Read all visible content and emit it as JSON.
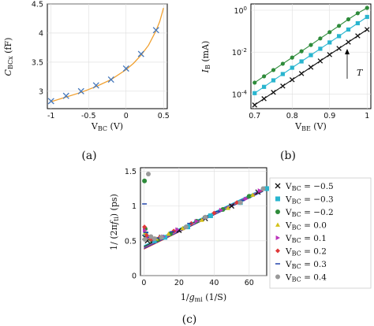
{
  "chart_data": [
    {
      "panel": "(a)",
      "type": "line",
      "xlabel": "V_BC (V)",
      "ylabel": "C_BCx (fF)",
      "xlim": [
        -1.05,
        0.55
      ],
      "ylim": [
        2.7,
        4.5
      ],
      "xticks": [
        -1,
        -0.5,
        0,
        0.5
      ],
      "yticks": [
        3,
        3.5,
        4,
        4.5
      ],
      "grid": true,
      "series": [
        {
          "kind": "fit-line",
          "color": "#f0a030",
          "x": [
            -1.0,
            -0.8,
            -0.6,
            -0.4,
            -0.2,
            0.0,
            0.1,
            0.2,
            0.3,
            0.4,
            0.45,
            0.5
          ],
          "y": [
            2.82,
            2.9,
            2.98,
            3.08,
            3.2,
            3.37,
            3.48,
            3.62,
            3.79,
            4.04,
            4.2,
            4.43
          ]
        },
        {
          "kind": "markers",
          "marker": "x",
          "color": "#4477bb",
          "x": [
            -1.0,
            -0.8,
            -0.6,
            -0.4,
            -0.2,
            0.0,
            0.2,
            0.4
          ],
          "y": [
            2.83,
            2.92,
            3.0,
            3.1,
            3.2,
            3.39,
            3.64,
            4.05
          ]
        }
      ]
    },
    {
      "panel": "(b)",
      "type": "line",
      "xlabel": "V_BE (V)",
      "ylabel": "I_B (mA)",
      "yscale": "log",
      "xlim": [
        0.69,
        1.01
      ],
      "ylim": [
        2e-05,
        2
      ],
      "xticks": [
        0.7,
        0.8,
        0.9,
        1
      ],
      "yticks": [
        0.0001,
        0.01,
        1
      ],
      "ytick_labels": [
        "10^-4",
        "10^-2",
        "10^0"
      ],
      "annotation": "T",
      "grid": true,
      "series": [
        {
          "marker": "circle",
          "color": "#2e8b3a",
          "x": [
            0.7,
            0.725,
            0.75,
            0.775,
            0.8,
            0.825,
            0.85,
            0.875,
            0.9,
            0.925,
            0.95,
            0.975,
            1.0
          ],
          "y": [
            0.00035,
            0.0007,
            0.0014,
            0.0028,
            0.0055,
            0.011,
            0.022,
            0.045,
            0.09,
            0.18,
            0.37,
            0.72,
            1.3
          ]
        },
        {
          "marker": "square",
          "color": "#29b5cf",
          "x": [
            0.7,
            0.725,
            0.75,
            0.775,
            0.8,
            0.825,
            0.85,
            0.875,
            0.9,
            0.925,
            0.95,
            0.975,
            1.0
          ],
          "y": [
            0.00011,
            0.00022,
            0.00045,
            0.0009,
            0.0018,
            0.0036,
            0.0072,
            0.0145,
            0.029,
            0.058,
            0.12,
            0.24,
            0.48
          ]
        },
        {
          "marker": "x",
          "color": "#111111",
          "x": [
            0.7,
            0.725,
            0.75,
            0.775,
            0.8,
            0.825,
            0.85,
            0.875,
            0.9,
            0.925,
            0.95,
            0.975,
            1.0
          ],
          "y": [
            3e-05,
            6e-05,
            0.00012,
            0.00024,
            0.00048,
            0.00095,
            0.0019,
            0.0038,
            0.0076,
            0.015,
            0.03,
            0.06,
            0.12
          ]
        }
      ]
    },
    {
      "panel": "(c)",
      "type": "scatter",
      "xlabel": "1/g_mi (1/S)",
      "ylabel": "1/(2π f_ti) (ps)",
      "xlim": [
        -2,
        70
      ],
      "ylim": [
        0,
        1.55
      ],
      "xticks": [
        0,
        20,
        40,
        60
      ],
      "yticks": [
        0,
        0.5,
        1,
        1.5
      ],
      "grid": true,
      "legend": "right",
      "series": [
        {
          "name": "V_BC = −0.5",
          "marker": "x",
          "color": "#111111",
          "x": [
            0.5,
            2,
            5,
            10,
            20,
            35,
            50,
            65
          ],
          "y": [
            0.55,
            0.5,
            0.5,
            0.55,
            0.65,
            0.82,
            1.0,
            1.2
          ]
        },
        {
          "name": "V_BC = −0.3",
          "marker": "square",
          "color": "#29b5cf",
          "x": [
            1,
            3,
            6,
            12,
            25,
            38,
            55,
            70
          ],
          "y": [
            0.6,
            0.55,
            0.5,
            0.55,
            0.7,
            0.86,
            1.05,
            1.25
          ]
        },
        {
          "name": "V_BC = −0.2",
          "marker": "circle",
          "color": "#2e8b3a",
          "x": [
            0.3,
            0.7,
            2,
            4,
            8,
            15,
            30,
            45,
            60
          ],
          "y": [
            1.36,
            0.67,
            0.55,
            0.52,
            0.52,
            0.6,
            0.78,
            0.95,
            1.14
          ]
        },
        {
          "name": "V_BC = 0.0",
          "marker": "triangle-up",
          "color": "#d4c21a",
          "x": [
            0.8,
            3,
            7,
            14,
            22,
            33,
            48,
            62
          ],
          "y": [
            0.62,
            0.55,
            0.53,
            0.6,
            0.68,
            0.8,
            0.97,
            1.16
          ]
        },
        {
          "name": "V_BC = 0.1",
          "marker": "triangle-right",
          "color": "#bb33bb",
          "x": [
            0.5,
            2.5,
            6,
            11,
            19,
            30,
            44,
            58,
            66
          ],
          "y": [
            0.65,
            0.55,
            0.52,
            0.56,
            0.66,
            0.78,
            0.94,
            1.1,
            1.22
          ]
        },
        {
          "name": "V_BC = 0.2",
          "marker": "diamond",
          "color": "#e03838",
          "x": [
            0.3,
            1.5,
            4,
            9,
            17,
            27,
            40,
            53
          ],
          "y": [
            0.7,
            0.58,
            0.52,
            0.55,
            0.64,
            0.75,
            0.9,
            1.05
          ]
        },
        {
          "name": "V_BC = 0.3",
          "marker": "dash",
          "color": "#2244aa",
          "x": [
            0.3,
            1.2,
            3.5,
            8,
            16,
            26,
            42,
            56
          ],
          "y": [
            1.03,
            0.62,
            0.55,
            0.54,
            0.63,
            0.75,
            0.92,
            1.08
          ]
        },
        {
          "name": "V_BC = 0.4",
          "marker": "circle",
          "color": "#999999",
          "x": [
            2.5,
            0.6,
            4,
            6,
            10,
            24,
            35,
            55,
            68
          ],
          "y": [
            1.46,
            0.52,
            0.56,
            0.53,
            0.55,
            0.7,
            0.84,
            1.05,
            1.25
          ]
        }
      ],
      "fit_lines": [
        {
          "color": "#111111",
          "x": [
            0,
            68
          ],
          "y": [
            0.42,
            1.24
          ]
        },
        {
          "color": "#29b5cf",
          "x": [
            0,
            68
          ],
          "y": [
            0.43,
            1.25
          ]
        },
        {
          "color": "#2e8b3a",
          "x": [
            0,
            68
          ],
          "y": [
            0.41,
            1.23
          ]
        },
        {
          "color": "#e03838",
          "x": [
            0,
            68
          ],
          "y": [
            0.38,
            1.22
          ]
        },
        {
          "color": "#bb33bb",
          "x": [
            0,
            68
          ],
          "y": [
            0.4,
            1.24
          ]
        },
        {
          "color": "#2244aa",
          "x": [
            0,
            68
          ],
          "y": [
            0.39,
            1.21
          ]
        }
      ]
    }
  ]
}
